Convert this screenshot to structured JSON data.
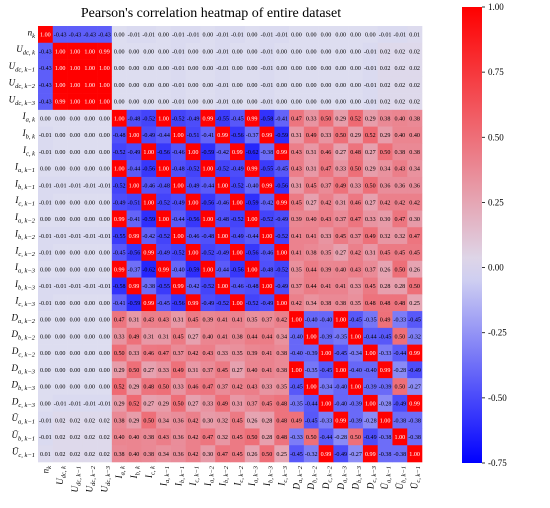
{
  "chart_data": {
    "type": "heatmap",
    "title": "Pearson's correlation heatmap of entire dataset",
    "labels": [
      {
        "base": "n",
        "sub": "k"
      },
      {
        "base": "U",
        "sub": "dc, k"
      },
      {
        "base": "U",
        "sub": "dc, k−1"
      },
      {
        "base": "U",
        "sub": "dc, k−2"
      },
      {
        "base": "U",
        "sub": "dc, k−3"
      },
      {
        "base": "I",
        "sub": "a, k"
      },
      {
        "base": "I",
        "sub": "b, k"
      },
      {
        "base": "I",
        "sub": "c, k"
      },
      {
        "base": "I",
        "sub": "a, k−1"
      },
      {
        "base": "I",
        "sub": "b, k−1"
      },
      {
        "base": "I",
        "sub": "c, k−1"
      },
      {
        "base": "I",
        "sub": "a, k−2"
      },
      {
        "base": "I",
        "sub": "b, k−2"
      },
      {
        "base": "I",
        "sub": "c, k−2"
      },
      {
        "base": "I",
        "sub": "a, k−3"
      },
      {
        "base": "I",
        "sub": "b, k−3"
      },
      {
        "base": "I",
        "sub": "c, k−3"
      },
      {
        "base": "D",
        "sub": "a, k−2"
      },
      {
        "base": "D",
        "sub": "b, k−2"
      },
      {
        "base": "D",
        "sub": "c, k−2"
      },
      {
        "base": "D",
        "sub": "a, k−3"
      },
      {
        "base": "D",
        "sub": "b, k−3"
      },
      {
        "base": "D",
        "sub": "c, k−3"
      },
      {
        "base": "Ū",
        "sub": "a, k−1"
      },
      {
        "base": "Ū",
        "sub": "b, k−1"
      },
      {
        "base": "Ū",
        "sub": "c, k−1"
      }
    ],
    "matrix": [
      [
        1.0,
        -0.43,
        -0.43,
        -0.43,
        -0.43,
        0.0,
        -0.01,
        -0.01,
        0.0,
        -0.01,
        -0.01,
        0.0,
        -0.01,
        -0.01,
        0.0,
        -0.01,
        -0.01,
        0.0,
        0.0,
        0.0,
        0.0,
        0.0,
        0.0,
        -0.01,
        -0.01,
        0.01
      ],
      [
        -0.43,
        1.0,
        1.0,
        1.0,
        0.99,
        0.0,
        0.0,
        0.0,
        0.0,
        -0.01,
        0.0,
        0.0,
        -0.01,
        0.0,
        0.0,
        -0.01,
        0.0,
        0.0,
        0.0,
        0.0,
        0.0,
        0.0,
        -0.01,
        0.02,
        0.02,
        0.02
      ],
      [
        -0.43,
        1.0,
        1.0,
        1.0,
        1.0,
        0.0,
        0.0,
        0.0,
        0.0,
        -0.01,
        0.0,
        0.0,
        -0.01,
        0.0,
        0.0,
        -0.01,
        0.0,
        0.0,
        0.0,
        0.0,
        0.0,
        0.0,
        -0.01,
        0.02,
        0.02,
        0.02
      ],
      [
        -0.43,
        1.0,
        1.0,
        1.0,
        1.0,
        0.0,
        0.0,
        0.0,
        0.0,
        -0.01,
        0.0,
        0.0,
        -0.01,
        0.0,
        0.0,
        -0.01,
        0.0,
        0.0,
        0.0,
        0.0,
        0.0,
        0.0,
        -0.01,
        0.02,
        0.02,
        0.02
      ],
      [
        -0.43,
        0.99,
        1.0,
        1.0,
        1.0,
        0.0,
        0.0,
        0.0,
        0.0,
        -0.01,
        0.0,
        0.0,
        -0.01,
        0.0,
        0.0,
        -0.01,
        0.0,
        0.0,
        0.0,
        0.0,
        0.0,
        0.0,
        -0.01,
        0.02,
        0.02,
        0.02
      ],
      [
        0.0,
        0.0,
        0.0,
        0.0,
        0.0,
        1.0,
        -0.48,
        -0.52,
        1.0,
        -0.52,
        -0.49,
        0.99,
        -0.55,
        -0.45,
        0.99,
        -0.58,
        -0.41,
        0.47,
        0.33,
        0.5,
        0.29,
        0.52,
        0.29,
        0.38,
        0.4,
        0.38
      ],
      [
        -0.01,
        0.0,
        0.0,
        0.0,
        0.0,
        -0.48,
        1.0,
        -0.49,
        -0.44,
        1.0,
        -0.51,
        -0.41,
        0.99,
        -0.56,
        -0.37,
        0.99,
        -0.59,
        0.31,
        0.49,
        0.33,
        0.5,
        0.29,
        0.52,
        0.29,
        0.4,
        0.4
      ],
      [
        -0.01,
        0.0,
        0.0,
        0.0,
        0.0,
        -0.52,
        -0.49,
        1.0,
        -0.56,
        -0.46,
        1.0,
        -0.59,
        -0.42,
        0.99,
        -0.62,
        -0.38,
        0.99,
        0.43,
        0.31,
        0.46,
        0.27,
        0.48,
        0.27,
        0.5,
        0.38,
        0.38
      ],
      [
        0.0,
        0.0,
        0.0,
        0.0,
        0.0,
        1.0,
        -0.44,
        -0.56,
        1.0,
        -0.48,
        -0.52,
        1.0,
        -0.52,
        -0.49,
        0.99,
        -0.55,
        -0.45,
        0.43,
        0.31,
        0.47,
        0.33,
        0.5,
        0.29,
        0.34,
        0.43,
        0.34
      ],
      [
        -0.01,
        -0.01,
        -0.01,
        -0.01,
        -0.01,
        -0.52,
        1.0,
        -0.46,
        -0.48,
        1.0,
        -0.49,
        -0.44,
        1.0,
        -0.52,
        -0.4,
        0.99,
        -0.56,
        0.31,
        0.45,
        0.37,
        0.49,
        0.33,
        0.5,
        0.36,
        0.36,
        0.36
      ],
      [
        -0.01,
        0.0,
        0.0,
        0.0,
        0.0,
        -0.49,
        -0.51,
        1.0,
        -0.52,
        -0.49,
        1.0,
        -0.56,
        -0.46,
        1.0,
        -0.59,
        -0.42,
        0.99,
        0.45,
        0.27,
        0.42,
        0.31,
        0.46,
        0.27,
        0.42,
        0.42,
        0.42
      ],
      [
        0.0,
        0.0,
        0.0,
        0.0,
        0.0,
        0.99,
        -0.41,
        -0.59,
        1.0,
        -0.44,
        -0.56,
        1.0,
        -0.48,
        -0.52,
        1.0,
        -0.52,
        -0.49,
        0.39,
        0.4,
        0.43,
        0.37,
        0.47,
        0.33,
        0.3,
        0.47,
        0.3
      ],
      [
        -0.01,
        -0.01,
        -0.01,
        -0.01,
        -0.01,
        -0.55,
        0.99,
        -0.42,
        -0.52,
        1.0,
        -0.46,
        -0.48,
        1.0,
        -0.49,
        -0.44,
        1.0,
        -0.52,
        0.41,
        0.41,
        0.33,
        0.45,
        0.37,
        0.49,
        0.32,
        0.32,
        0.47
      ],
      [
        -0.01,
        0.0,
        0.0,
        0.0,
        0.0,
        -0.45,
        -0.56,
        0.99,
        -0.49,
        -0.52,
        1.0,
        -0.52,
        -0.49,
        1.0,
        -0.56,
        -0.46,
        1.0,
        0.41,
        0.38,
        0.35,
        0.27,
        0.42,
        0.31,
        0.45,
        0.45,
        0.45
      ],
      [
        0.0,
        0.0,
        0.0,
        0.0,
        0.0,
        0.99,
        -0.37,
        -0.62,
        0.99,
        -0.4,
        -0.59,
        1.0,
        -0.44,
        -0.56,
        1.0,
        -0.48,
        -0.52,
        0.35,
        0.44,
        0.39,
        0.4,
        0.43,
        0.37,
        0.26,
        0.5,
        0.26
      ],
      [
        -0.01,
        -0.01,
        -0.01,
        -0.01,
        -0.01,
        -0.58,
        0.99,
        -0.38,
        -0.55,
        0.99,
        -0.42,
        -0.52,
        1.0,
        -0.46,
        -0.48,
        1.0,
        -0.49,
        0.37,
        0.44,
        0.41,
        0.41,
        0.33,
        0.45,
        0.28,
        0.28,
        0.5
      ],
      [
        -0.01,
        0.0,
        0.0,
        0.0,
        0.0,
        -0.41,
        -0.59,
        0.99,
        -0.45,
        -0.56,
        0.99,
        -0.49,
        -0.52,
        1.0,
        -0.52,
        -0.49,
        1.0,
        0.42,
        0.34,
        0.38,
        0.38,
        0.35,
        0.48,
        0.48,
        0.48,
        0.25
      ],
      [
        0.0,
        0.0,
        0.0,
        0.0,
        0.0,
        0.47,
        0.31,
        0.43,
        0.43,
        0.31,
        0.45,
        0.39,
        0.41,
        0.41,
        0.35,
        0.37,
        0.42,
        1.0,
        -0.4,
        -0.4,
        1.0,
        -0.45,
        -0.35,
        0.49,
        -0.33,
        -0.45
      ],
      [
        0.0,
        0.0,
        0.0,
        0.0,
        0.0,
        0.33,
        0.49,
        0.31,
        0.31,
        0.45,
        0.27,
        0.4,
        0.41,
        0.38,
        0.44,
        0.44,
        0.34,
        -0.4,
        1.0,
        -0.39,
        -0.35,
        1.0,
        -0.44,
        -0.45,
        0.5,
        -0.32
      ],
      [
        0.0,
        0.0,
        0.0,
        0.0,
        0.0,
        0.5,
        0.33,
        0.46,
        0.47,
        0.37,
        0.42,
        0.43,
        0.33,
        0.35,
        0.39,
        0.41,
        0.38,
        -0.4,
        -0.39,
        1.0,
        -0.45,
        -0.34,
        1.0,
        -0.33,
        -0.44,
        0.99
      ],
      [
        0.0,
        0.0,
        0.0,
        0.0,
        0.0,
        0.29,
        0.5,
        0.27,
        0.33,
        0.49,
        0.31,
        0.37,
        0.45,
        0.27,
        0.4,
        0.41,
        0.38,
        1.0,
        -0.35,
        -0.45,
        1.0,
        -0.4,
        -0.4,
        0.99,
        -0.28,
        -0.49
      ],
      [
        0.0,
        0.0,
        0.0,
        0.0,
        0.0,
        0.52,
        0.29,
        0.48,
        0.5,
        0.33,
        0.46,
        0.47,
        0.37,
        0.42,
        0.43,
        0.33,
        0.35,
        -0.45,
        1.0,
        -0.34,
        -0.4,
        1.0,
        -0.39,
        -0.39,
        0.5,
        -0.27
      ],
      [
        0.0,
        -0.01,
        -0.01,
        -0.01,
        -0.01,
        0.29,
        0.52,
        0.27,
        0.29,
        0.5,
        0.27,
        0.33,
        0.49,
        0.31,
        0.37,
        0.45,
        0.48,
        -0.35,
        -0.44,
        1.0,
        -0.4,
        -0.39,
        1.0,
        -0.28,
        -0.49,
        0.99
      ],
      [
        -0.01,
        0.02,
        0.02,
        0.02,
        0.02,
        0.38,
        0.29,
        0.5,
        0.34,
        0.36,
        0.42,
        0.3,
        0.32,
        0.45,
        0.26,
        0.28,
        0.48,
        0.49,
        -0.45,
        -0.33,
        0.99,
        -0.39,
        -0.28,
        1.0,
        -0.38,
        -0.38
      ],
      [
        -0.01,
        0.02,
        0.02,
        0.02,
        0.02,
        0.4,
        0.4,
        0.38,
        0.43,
        0.36,
        0.42,
        0.47,
        0.32,
        0.45,
        0.5,
        0.28,
        0.48,
        -0.33,
        0.5,
        -0.44,
        -0.28,
        0.5,
        -0.49,
        -0.38,
        1.0,
        -0.38
      ],
      [
        0.01,
        0.02,
        0.02,
        0.02,
        0.02,
        0.38,
        0.4,
        0.38,
        0.34,
        0.36,
        0.42,
        0.3,
        0.47,
        0.45,
        0.26,
        0.5,
        0.25,
        -0.45,
        -0.32,
        0.99,
        -0.49,
        -0.27,
        0.99,
        -0.38,
        -0.38,
        1.0
      ]
    ],
    "colorbar": {
      "min": -0.75,
      "max": 1.0,
      "ticks": [
        "1.00",
        "0.75",
        "0.50",
        "0.25",
        "0.00",
        "-0.25",
        "-0.50",
        "-0.75"
      ],
      "tick_values": [
        1.0,
        0.75,
        0.5,
        0.25,
        0.0,
        -0.25,
        -0.5,
        -0.75
      ]
    },
    "colors": {
      "low": "#0000ff",
      "mid": "#ddddf0",
      "high": "#ff0000"
    }
  }
}
